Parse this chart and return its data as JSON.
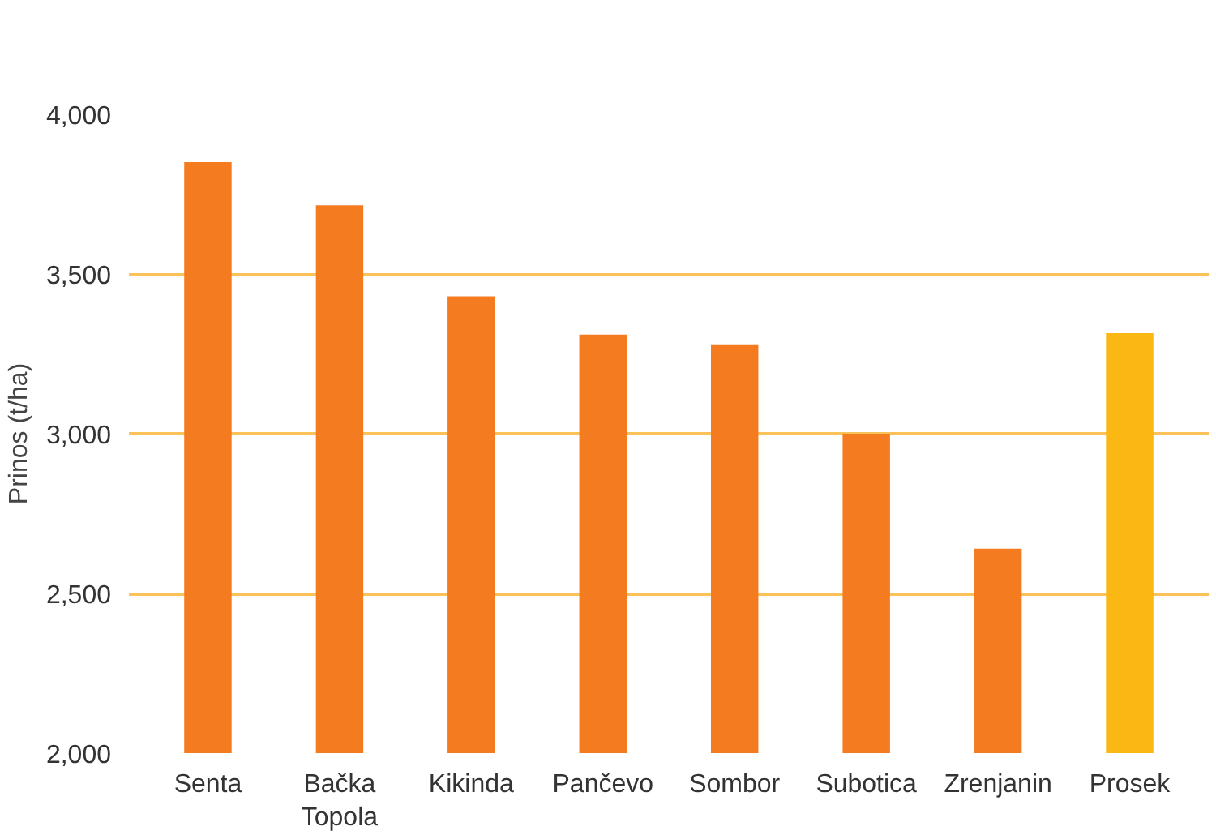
{
  "chart_data": {
    "type": "bar",
    "ylabel": "Prinos (t/ha)",
    "categories": [
      "Senta",
      "Bačka Topola",
      "Kikinda",
      "Pančevo",
      "Sombor",
      "Subotica",
      "Zrenjanin",
      "Prosek"
    ],
    "values": [
      3850,
      3715,
      3430,
      3310,
      3280,
      3000,
      2640,
      3315
    ],
    "colors": [
      "#f47b20",
      "#f47b20",
      "#f47b20",
      "#f47b20",
      "#f47b20",
      "#f47b20",
      "#f47b20",
      "#fbb714"
    ],
    "ylim": [
      2000,
      4000
    ],
    "yticks": [
      {
        "value": 2000,
        "label": "2,000"
      },
      {
        "value": 2500,
        "label": "2,500"
      },
      {
        "value": 3000,
        "label": "3,000"
      },
      {
        "value": 3500,
        "label": "3,500"
      },
      {
        "value": 4000,
        "label": "4,000"
      }
    ],
    "grid": "y"
  }
}
